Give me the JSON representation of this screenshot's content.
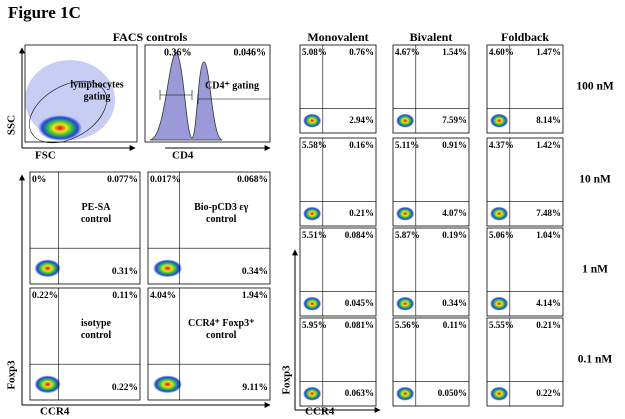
{
  "title": "Figure 1C",
  "facs_controls": {
    "title": "FACS controls",
    "scatter": {
      "label": [
        "lymphocytes",
        "gating"
      ],
      "y_axis": "SSC",
      "x_axis": "FSC"
    },
    "histogram": {
      "left": "0.36%",
      "right": "0.046%",
      "label": "CD4⁺ gating",
      "x_axis": "CD4"
    },
    "panels": [
      {
        "tl": "0%",
        "tr": "0.077%",
        "label": [
          "PE-SA",
          "control"
        ],
        "br": "0.31%"
      },
      {
        "tl": "0.017%",
        "tr": "0.068%",
        "label": [
          "Bio-pCD3 εγ",
          "control"
        ],
        "br": "0.34%"
      },
      {
        "tl": "0.22%",
        "tr": "0.11%",
        "label": [
          "isotype",
          "control"
        ],
        "br": "0.22%"
      },
      {
        "tl": "4.04%",
        "tr": "1.94%",
        "label": [
          "CCR4⁺ Foxp3⁺",
          "control"
        ],
        "br": "9.11%"
      }
    ],
    "y_axis": "Foxp3",
    "x_axis": "CCR4"
  },
  "titration": {
    "columns": [
      "Monovalent",
      "Bivalent",
      "Foldback"
    ],
    "rows": [
      {
        "label": "100 nM",
        "cells": [
          [
            "5.08%",
            "0.76%",
            "2.94%"
          ],
          [
            "4.67%",
            "1.54%",
            "7.59%"
          ],
          [
            "4.60%",
            "1.47%",
            "8.14%"
          ]
        ]
      },
      {
        "label": "10 nM",
        "cells": [
          [
            "5.58%",
            "0.16%",
            "0.21%"
          ],
          [
            "5.11%",
            "0.91%",
            "4.07%"
          ],
          [
            "4.37%",
            "1.42%",
            "7.48%"
          ]
        ]
      },
      {
        "label": "1 nM",
        "cells": [
          [
            "5.51%",
            "0.084%",
            "0.045%"
          ],
          [
            "5.87%",
            "0.19%",
            "0.34%"
          ],
          [
            "5.06%",
            "1.04%",
            "4.14%"
          ]
        ]
      },
      {
        "label": "0.1 nM",
        "cells": [
          [
            "5.95%",
            "0.081%",
            "0.063%"
          ],
          [
            "5.56%",
            "0.11%",
            "0.050%"
          ],
          [
            "5.55%",
            "0.21%",
            "0.22%"
          ]
        ]
      }
    ],
    "y_axis": "Foxp3",
    "x_axis": "CCR4"
  }
}
